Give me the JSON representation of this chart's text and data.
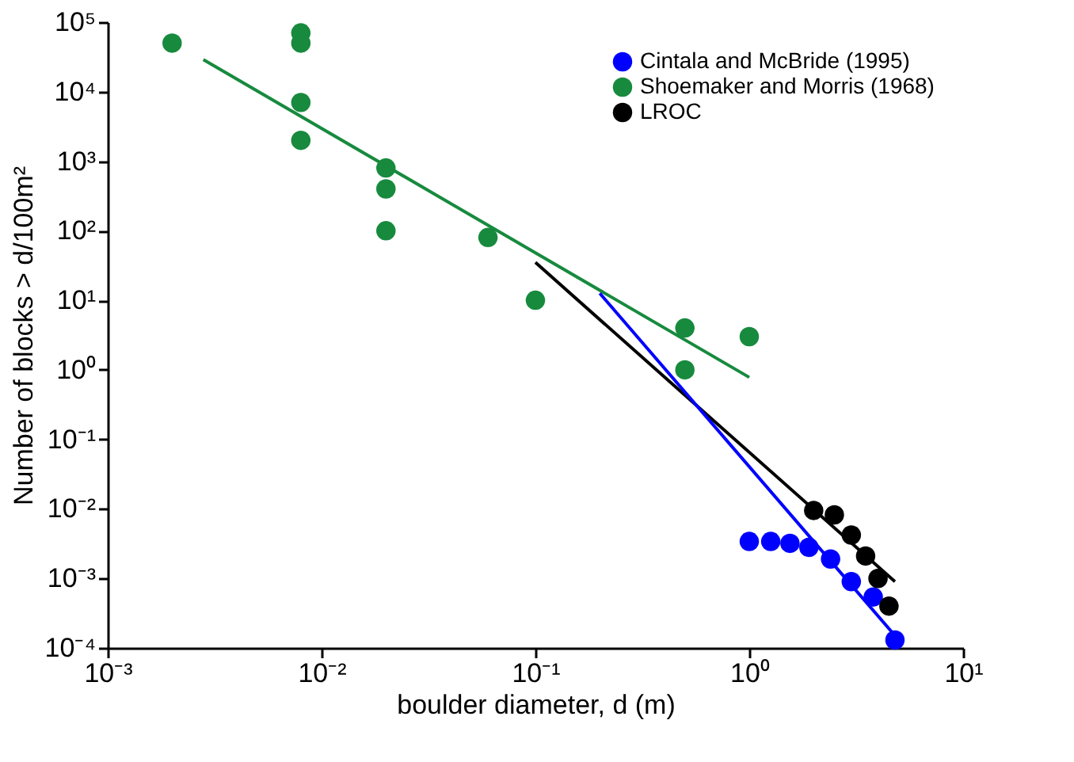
{
  "chart_data": {
    "type": "scatter",
    "xlabel": "boulder diameter, d (m)",
    "ylabel": "Number of blocks > d/100m²",
    "log": "xy",
    "grid": false,
    "legend": "top right",
    "marker": "circle",
    "xlim": [
      0.001,
      10
    ],
    "ylim": [
      0.0001,
      100000
    ],
    "xticks": [
      {
        "value": 0.001,
        "label": "10⁻³"
      },
      {
        "value": 0.01,
        "label": "10⁻²"
      },
      {
        "value": 0.1,
        "label": "10⁻¹"
      },
      {
        "value": 1,
        "label": "10⁰"
      },
      {
        "value": 10,
        "label": "10¹"
      }
    ],
    "yticks": [
      {
        "value": 0.0001,
        "label": "10⁻⁴"
      },
      {
        "value": 0.001,
        "label": "10⁻³"
      },
      {
        "value": 0.01,
        "label": "10⁻²"
      },
      {
        "value": 0.1,
        "label": "10⁻¹"
      },
      {
        "value": 1,
        "label": "10⁰"
      },
      {
        "value": 10,
        "label": "10¹"
      },
      {
        "value": 100,
        "label": "10²"
      },
      {
        "value": 1000,
        "label": "10³"
      },
      {
        "value": 10000,
        "label": "10⁴"
      },
      {
        "value": 100000,
        "label": "10⁵"
      }
    ],
    "series": [
      {
        "name": "Cintala and McBride (1995)",
        "color": "#0000ff",
        "x": [
          1,
          1.26,
          1.55,
          1.9,
          2.4,
          3.0,
          3.8,
          4.8
        ],
        "values": [
          0.0034,
          0.0034,
          0.0032,
          0.0028,
          0.0019,
          0.0009,
          0.00054,
          0.00013
        ]
      },
      {
        "name": "Shoemaker and Morris (1968)",
        "color": "#178a3e",
        "x": [
          0.002,
          0.008,
          0.008,
          0.008,
          0.008,
          0.02,
          0.02,
          0.02,
          0.06,
          0.1,
          0.5,
          0.5,
          1
        ],
        "values": [
          50000,
          70000,
          50000,
          7000,
          2000,
          800,
          400,
          100,
          80,
          10,
          4,
          1,
          3
        ]
      },
      {
        "name": "LROC",
        "color": "#000000",
        "x": [
          2,
          2.5,
          3,
          3.5,
          4,
          4.5
        ],
        "values": [
          0.0095,
          0.0082,
          0.0042,
          0.0021,
          0.001,
          0.0004
        ]
      },
      {
        "type": "line",
        "color": "#178a3e",
        "marker": "none",
        "x": [
          0.0028,
          1
        ],
        "values": [
          29000,
          0.78
        ]
      },
      {
        "type": "line",
        "color": "#000000",
        "marker": "none",
        "x": [
          0.1,
          4.8
        ],
        "values": [
          35,
          0.0009
        ]
      },
      {
        "type": "line",
        "color": "#0000ff",
        "marker": "none",
        "x": [
          0.2,
          5
        ],
        "values": [
          12.6,
          0.00013
        ]
      }
    ]
  }
}
